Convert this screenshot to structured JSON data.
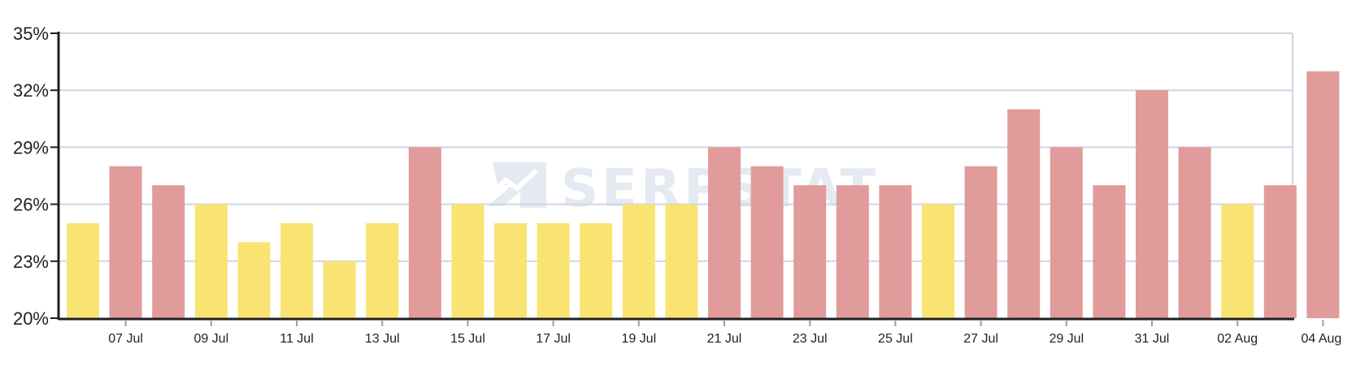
{
  "watermark": {
    "text": "SERPSTAT"
  },
  "colors": {
    "up": "#e09b9a",
    "down": "#f9e473",
    "grid": "#cfd5e2",
    "axis": "#1f1f23",
    "watermark": "#dde2ee"
  },
  "chart_data": {
    "type": "bar",
    "title": "",
    "xlabel": "",
    "ylabel": "",
    "ylim": [
      20,
      35
    ],
    "yticks": [
      20,
      23,
      26,
      29,
      32,
      35
    ],
    "ytick_labels": [
      "20%",
      "23%",
      "26%",
      "29%",
      "32%",
      "35%"
    ],
    "grid": true,
    "legend": "none",
    "categories": [
      "06 Jul",
      "07 Jul",
      "08 Jul",
      "09 Jul",
      "10 Jul",
      "11 Jul",
      "12 Jul",
      "13 Jul",
      "14 Jul",
      "15 Jul",
      "16 Jul",
      "17 Jul",
      "18 Jul",
      "19 Jul",
      "20 Jul",
      "21 Jul",
      "22 Jul",
      "23 Jul",
      "24 Jul",
      "25 Jul",
      "26 Jul",
      "27 Jul",
      "28 Jul",
      "29 Jul",
      "30 Jul",
      "31 Jul",
      "01 Aug",
      "02 Aug",
      "03 Aug",
      "04 Aug"
    ],
    "x_tick_labels": [
      "07 Jul",
      "09 Jul",
      "11 Jul",
      "13 Jul",
      "15 Jul",
      "17 Jul",
      "19 Jul",
      "21 Jul",
      "23 Jul",
      "25 Jul",
      "27 Jul",
      "29 Jul",
      "31 Jul",
      "02 Aug",
      "04 Aug"
    ],
    "values": [
      25,
      28,
      27,
      26,
      24,
      25,
      23,
      25,
      29,
      26,
      25,
      25,
      25,
      26,
      26,
      29,
      28,
      27,
      27,
      27,
      26,
      28,
      31,
      29,
      27,
      32,
      29,
      26,
      27,
      33
    ],
    "bar_colors": [
      "#f9e473",
      "#e09b9a",
      "#e09b9a",
      "#f9e473",
      "#f9e473",
      "#f9e473",
      "#f9e473",
      "#f9e473",
      "#e09b9a",
      "#f9e473",
      "#f9e473",
      "#f9e473",
      "#f9e473",
      "#f9e473",
      "#f9e473",
      "#e09b9a",
      "#e09b9a",
      "#e09b9a",
      "#e09b9a",
      "#e09b9a",
      "#f9e473",
      "#e09b9a",
      "#e09b9a",
      "#e09b9a",
      "#e09b9a",
      "#e09b9a",
      "#e09b9a",
      "#f9e473",
      "#e09b9a",
      "#e09b9a"
    ]
  }
}
